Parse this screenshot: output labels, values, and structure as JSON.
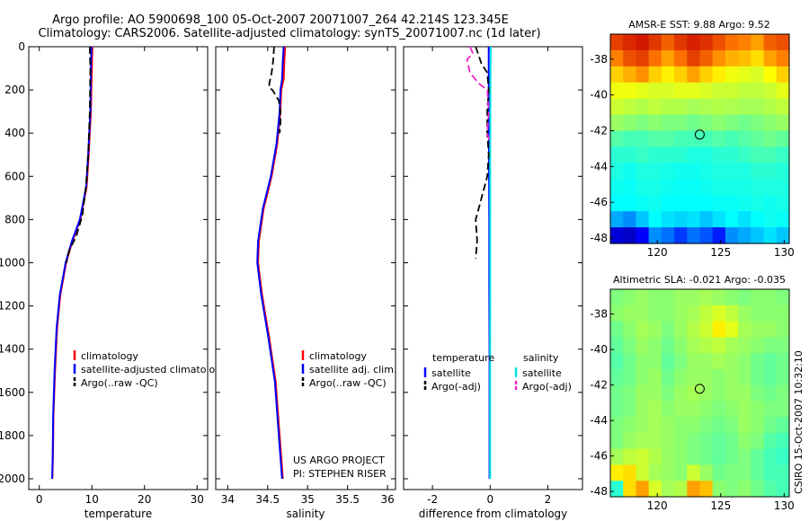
{
  "header": {
    "line1": "Argo profile: AO 5900698_100 05-Oct-2007 20071007_264 42.214S 123.345E",
    "line2": "Climatology: CARS2006. Satellite-adjusted climatology: synTS_20071007.nc (1d later)"
  },
  "side_label": "CSIRO 15-Oct-2007 10:32:10",
  "colors": {
    "clim": "#ff0000",
    "sat": "#0000ff",
    "argo": "#000000",
    "sat_cyan": "#00e5e5",
    "argo_mag": "#ee22cc"
  },
  "chart_data": [
    {
      "id": "temperature",
      "type": "line",
      "xlabel": "temperature",
      "ylabel": "",
      "xlim": [
        -2,
        32
      ],
      "ylim": [
        2050,
        0
      ],
      "xticks": [
        0,
        10,
        20,
        30
      ],
      "xtick_labels": [
        "0",
        "10",
        "20",
        "30"
      ],
      "yticks": [
        0,
        200,
        400,
        600,
        800,
        1000,
        1200,
        1400,
        1600,
        1800,
        2000
      ],
      "ytick_labels": [
        "0",
        "200",
        "400",
        "600",
        "800",
        "1000",
        "1200",
        "1400",
        "1600",
        "1800",
        "2000"
      ],
      "legend": [
        "climatology",
        "satellite-adjusted climatology",
        "Argo(..raw -QC)"
      ],
      "series": [
        {
          "name": "climatology",
          "style": "clim",
          "x": [
            10.1,
            10.0,
            9.8,
            9.4,
            9.0,
            7.8,
            6.3,
            5.1,
            4.0,
            3.4,
            3.0,
            2.7,
            2.6,
            2.5
          ],
          "y": [
            0,
            100,
            300,
            500,
            650,
            800,
            900,
            1000,
            1150,
            1300,
            1500,
            1700,
            1900,
            2000
          ]
        },
        {
          "name": "satellite-adjusted climatology",
          "style": "sat",
          "x": [
            9.9,
            9.8,
            9.7,
            9.3,
            8.9,
            7.7,
            6.2,
            5.0,
            3.9,
            3.3,
            2.9,
            2.65,
            2.55,
            2.45
          ],
          "y": [
            0,
            100,
            300,
            500,
            650,
            800,
            900,
            1000,
            1150,
            1300,
            1500,
            1700,
            1900,
            2000
          ]
        },
        {
          "name": "Argo(..raw -QC)",
          "style": "argo",
          "x": [
            9.6,
            9.7,
            9.6,
            9.3,
            8.9,
            8.2,
            7.0,
            5.7,
            5.3,
            5.2
          ],
          "y": [
            0,
            100,
            300,
            500,
            640,
            780,
            880,
            940,
            980,
            1000
          ]
        }
      ]
    },
    {
      "id": "salinity",
      "type": "line",
      "xlabel": "salinity",
      "ylabel": "",
      "xlim": [
        33.85,
        36.1
      ],
      "ylim": [
        2050,
        0
      ],
      "xticks": [
        34,
        34.5,
        35,
        35.5,
        36
      ],
      "xtick_labels": [
        "34",
        "34.5",
        "35",
        "35.5",
        "36"
      ],
      "legend": [
        "climatology",
        "satellite adj. clim.",
        "Argo(..raw -QC)"
      ],
      "annotation": [
        "US ARGO PROJECT",
        "PI: STEPHEN RISER"
      ],
      "series": [
        {
          "name": "climatology",
          "style": "clim",
          "x": [
            34.72,
            34.71,
            34.7,
            34.67,
            34.66,
            34.62,
            34.55,
            34.45,
            34.39,
            34.38,
            34.43,
            34.52,
            34.6,
            34.64,
            34.67,
            34.69
          ],
          "y": [
            0,
            60,
            150,
            200,
            300,
            450,
            600,
            750,
            900,
            1000,
            1150,
            1350,
            1550,
            1750,
            1900,
            2000
          ]
        },
        {
          "name": "satellite adj. clim.",
          "style": "sat",
          "x": [
            34.7,
            34.69,
            34.68,
            34.66,
            34.65,
            34.61,
            34.54,
            34.44,
            34.38,
            34.37,
            34.42,
            34.51,
            34.59,
            34.63,
            34.66,
            34.68
          ],
          "y": [
            0,
            60,
            150,
            200,
            300,
            450,
            600,
            750,
            900,
            1000,
            1150,
            1350,
            1550,
            1750,
            1900,
            2000
          ]
        },
        {
          "name": "Argo(..raw -QC)",
          "style": "argo",
          "x": [
            34.58,
            34.57,
            34.55,
            34.52,
            34.52,
            34.56,
            34.64,
            34.66,
            34.66,
            34.65
          ],
          "y": [
            0,
            60,
            120,
            170,
            190,
            200,
            250,
            300,
            350,
            400
          ]
        }
      ]
    },
    {
      "id": "difference",
      "type": "line",
      "xlabel": "difference from climatology",
      "ylabel": "",
      "xlim": [
        -3,
        3.2
      ],
      "ylim": [
        2050,
        0
      ],
      "xticks": [
        -2,
        0,
        2
      ],
      "xtick_labels": [
        "-2",
        "0",
        "2"
      ],
      "legend_left_title": "temperature",
      "legend_right_title": "salinity",
      "legend_left": [
        "satellite",
        "Argo(-adj)"
      ],
      "legend_right": [
        "satellite",
        "Argo(-adj)"
      ],
      "series": [
        {
          "name": "temperature satellite",
          "style": "sat",
          "x": [
            -0.05,
            -0.05,
            -0.04,
            -0.03,
            -0.03,
            -0.02,
            -0.02,
            -0.02
          ],
          "y": [
            0,
            200,
            500,
            800,
            1100,
            1400,
            1700,
            2000
          ]
        },
        {
          "name": "salinity satellite",
          "style": "sat_cyan",
          "x": [
            0.02,
            0.01,
            0.0,
            0.0,
            0.0,
            0.0,
            0.0,
            0.0
          ],
          "y": [
            0,
            200,
            500,
            800,
            1100,
            1400,
            1700,
            2000
          ]
        },
        {
          "name": "temperature Argo(-adj)",
          "style": "argo",
          "x": [
            -0.5,
            -0.4,
            -0.3,
            -0.1,
            -0.05,
            -0.1,
            -0.1,
            -0.05,
            -0.1,
            -0.3,
            -0.4,
            -0.5,
            -0.45,
            -0.5
          ],
          "y": [
            0,
            40,
            80,
            120,
            200,
            300,
            400,
            500,
            600,
            700,
            750,
            800,
            900,
            980
          ]
        },
        {
          "name": "salinity Argo(-adj)",
          "style": "argo_mag",
          "x": [
            -0.7,
            -0.6,
            -0.8,
            -0.7,
            -0.4,
            -0.1,
            -0.05,
            -0.1,
            0.0
          ],
          "y": [
            0,
            30,
            60,
            120,
            170,
            200,
            300,
            400,
            450
          ]
        }
      ]
    },
    {
      "id": "sst",
      "type": "heatmap",
      "title": "AMSR-E SST: 9.88 Argo: 9.52",
      "xlim": [
        116.3,
        130.4
      ],
      "ylim": [
        -48.3,
        -36.6
      ],
      "xticks": [
        120,
        125,
        130
      ],
      "xtick_labels": [
        "120",
        "125",
        "130"
      ],
      "yticks": [
        -38,
        -40,
        -42,
        -44,
        -46,
        -48
      ],
      "ytick_labels": [
        "-38",
        "-40",
        "-42",
        "-44",
        "-46",
        "-48"
      ],
      "marker": {
        "lon": 123.345,
        "lat": -42.214
      },
      "rows": [
        [
          0.92,
          0.95,
          0.97,
          0.93,
          0.88,
          0.93,
          0.96,
          0.94,
          0.9,
          0.86,
          0.84,
          0.8,
          0.88,
          0.9
        ],
        [
          0.84,
          0.9,
          0.92,
          0.86,
          0.8,
          0.86,
          0.92,
          0.88,
          0.82,
          0.78,
          0.76,
          0.72,
          0.8,
          0.84
        ],
        [
          0.74,
          0.78,
          0.82,
          0.74,
          0.7,
          0.74,
          0.8,
          0.74,
          0.7,
          0.66,
          0.64,
          0.62,
          0.68,
          0.74
        ],
        [
          0.66,
          0.66,
          0.64,
          0.62,
          0.62,
          0.64,
          0.64,
          0.62,
          0.6,
          0.6,
          0.58,
          0.58,
          0.6,
          0.64
        ],
        [
          0.6,
          0.58,
          0.56,
          0.58,
          0.56,
          0.56,
          0.54,
          0.55,
          0.56,
          0.55,
          0.54,
          0.54,
          0.56,
          0.58
        ],
        [
          0.52,
          0.5,
          0.48,
          0.5,
          0.48,
          0.48,
          0.46,
          0.48,
          0.5,
          0.48,
          0.46,
          0.48,
          0.5,
          0.52
        ],
        [
          0.42,
          0.4,
          0.4,
          0.42,
          0.42,
          0.4,
          0.4,
          0.4,
          0.42,
          0.4,
          0.42,
          0.44,
          0.46,
          0.44
        ],
        [
          0.36,
          0.36,
          0.38,
          0.36,
          0.36,
          0.36,
          0.34,
          0.34,
          0.36,
          0.36,
          0.38,
          0.4,
          0.4,
          0.38
        ],
        [
          0.34,
          0.32,
          0.34,
          0.34,
          0.33,
          0.32,
          0.32,
          0.33,
          0.34,
          0.34,
          0.34,
          0.36,
          0.36,
          0.35
        ],
        [
          0.32,
          0.31,
          0.33,
          0.33,
          0.32,
          0.31,
          0.31,
          0.32,
          0.33,
          0.33,
          0.33,
          0.34,
          0.34,
          0.34
        ],
        [
          0.3,
          0.3,
          0.31,
          0.32,
          0.3,
          0.3,
          0.3,
          0.3,
          0.31,
          0.31,
          0.32,
          0.33,
          0.32,
          0.33
        ],
        [
          0.24,
          0.22,
          0.26,
          0.3,
          0.28,
          0.27,
          0.28,
          0.26,
          0.28,
          0.3,
          0.28,
          0.3,
          0.32,
          0.31
        ],
        [
          0.08,
          0.06,
          0.12,
          0.22,
          0.2,
          0.16,
          0.2,
          0.18,
          0.14,
          0.22,
          0.24,
          0.26,
          0.28,
          0.26
        ]
      ]
    },
    {
      "id": "sla",
      "type": "heatmap",
      "title": "Altimetric SLA: -0.021 Argo: -0.035",
      "xlim": [
        116.3,
        130.4
      ],
      "ylim": [
        -48.3,
        -36.6
      ],
      "xticks": [
        120,
        125,
        130
      ],
      "xtick_labels": [
        "120",
        "125",
        "130"
      ],
      "yticks": [
        -38,
        -40,
        -42,
        -44,
        -46,
        -48
      ],
      "ytick_labels": [
        "-38",
        "-40",
        "-42",
        "-44",
        "-46",
        "-48"
      ],
      "marker": {
        "lon": 123.345,
        "lat": -42.214
      },
      "rows": [
        [
          0.48,
          0.5,
          0.52,
          0.5,
          0.5,
          0.52,
          0.52,
          0.54,
          0.52,
          0.5,
          0.48,
          0.5,
          0.5,
          0.48
        ],
        [
          0.5,
          0.52,
          0.52,
          0.5,
          0.5,
          0.52,
          0.54,
          0.58,
          0.62,
          0.58,
          0.52,
          0.5,
          0.5,
          0.5
        ],
        [
          0.46,
          0.5,
          0.54,
          0.52,
          0.48,
          0.52,
          0.56,
          0.6,
          0.7,
          0.64,
          0.54,
          0.52,
          0.52,
          0.5
        ],
        [
          0.44,
          0.48,
          0.52,
          0.5,
          0.46,
          0.5,
          0.54,
          0.56,
          0.58,
          0.54,
          0.52,
          0.5,
          0.48,
          0.48
        ],
        [
          0.42,
          0.46,
          0.5,
          0.5,
          0.44,
          0.48,
          0.52,
          0.52,
          0.54,
          0.52,
          0.5,
          0.46,
          0.44,
          0.46
        ],
        [
          0.44,
          0.46,
          0.5,
          0.52,
          0.46,
          0.5,
          0.52,
          0.52,
          0.5,
          0.52,
          0.5,
          0.46,
          0.44,
          0.46
        ],
        [
          0.46,
          0.48,
          0.52,
          0.52,
          0.48,
          0.52,
          0.54,
          0.52,
          0.5,
          0.52,
          0.52,
          0.48,
          0.46,
          0.48
        ],
        [
          0.46,
          0.48,
          0.52,
          0.54,
          0.5,
          0.52,
          0.52,
          0.5,
          0.48,
          0.5,
          0.52,
          0.5,
          0.48,
          0.48
        ],
        [
          0.48,
          0.5,
          0.52,
          0.54,
          0.52,
          0.5,
          0.5,
          0.48,
          0.46,
          0.48,
          0.52,
          0.5,
          0.46,
          0.44
        ],
        [
          0.48,
          0.52,
          0.54,
          0.54,
          0.52,
          0.5,
          0.48,
          0.46,
          0.44,
          0.46,
          0.5,
          0.48,
          0.42,
          0.4
        ],
        [
          0.54,
          0.58,
          0.6,
          0.56,
          0.52,
          0.5,
          0.48,
          0.46,
          0.44,
          0.46,
          0.48,
          0.44,
          0.4,
          0.38
        ],
        [
          0.7,
          0.72,
          0.6,
          0.54,
          0.52,
          0.5,
          0.6,
          0.52,
          0.46,
          0.48,
          0.48,
          0.44,
          0.4,
          0.4
        ],
        [
          0.36,
          0.72,
          0.8,
          0.62,
          0.54,
          0.56,
          0.8,
          0.76,
          0.5,
          0.48,
          0.5,
          0.46,
          0.42,
          0.4
        ]
      ]
    }
  ]
}
